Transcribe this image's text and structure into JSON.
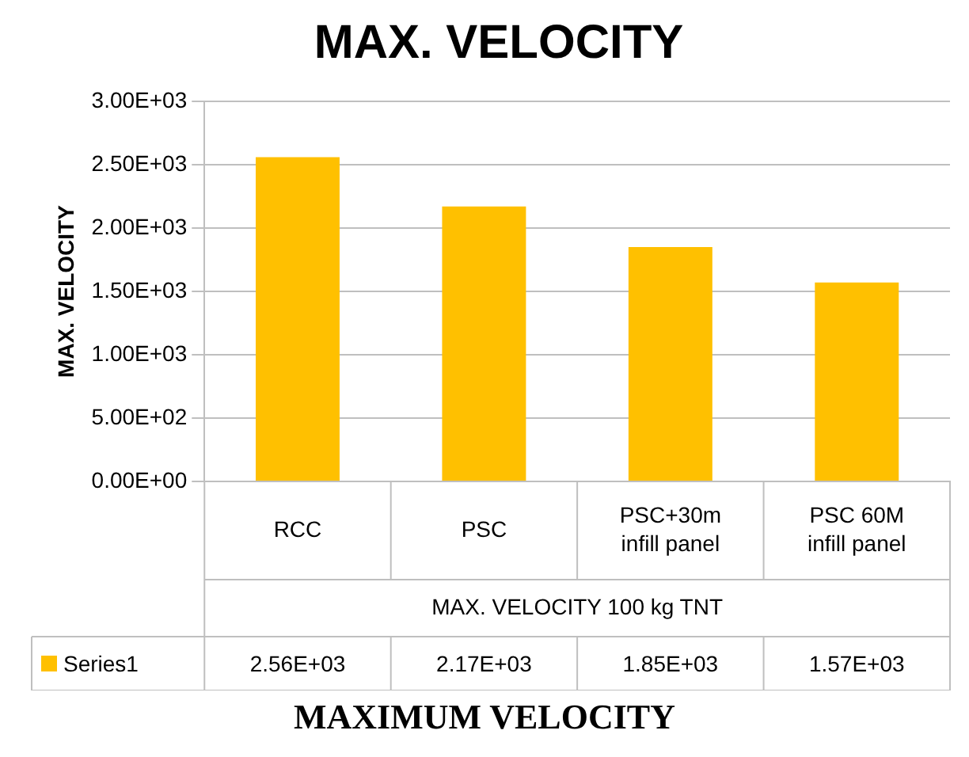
{
  "chart_data": {
    "type": "bar",
    "title": "MAX. VELOCITY",
    "ylabel": "MAX. VELOCITY",
    "xlabel": "MAX. VELOCITY 100 kg TNT",
    "categories": [
      "RCC",
      "PSC",
      "PSC+30m infill panel",
      "PSC 60M infill panel"
    ],
    "series": [
      {
        "name": "Series1",
        "color": "#ffc000",
        "values": [
          2560,
          2170,
          1850,
          1570
        ],
        "value_labels": [
          "2.56E+03",
          "2.17E+03",
          "1.85E+03",
          "1.57E+03"
        ]
      }
    ],
    "ylim": [
      0,
      3000
    ],
    "yticks": [
      {
        "value": 0,
        "label": "0.00E+00"
      },
      {
        "value": 500,
        "label": "5.00E+02"
      },
      {
        "value": 1000,
        "label": "1.00E+03"
      },
      {
        "value": 1500,
        "label": "1.50E+03"
      },
      {
        "value": 2000,
        "label": "2.00E+03"
      },
      {
        "value": 2500,
        "label": "2.50E+03"
      },
      {
        "value": 3000,
        "label": "3.00E+03"
      }
    ],
    "grid": "y",
    "legend": "bottom left",
    "annotations": [
      "MAXIMUM VELOCITY"
    ]
  }
}
